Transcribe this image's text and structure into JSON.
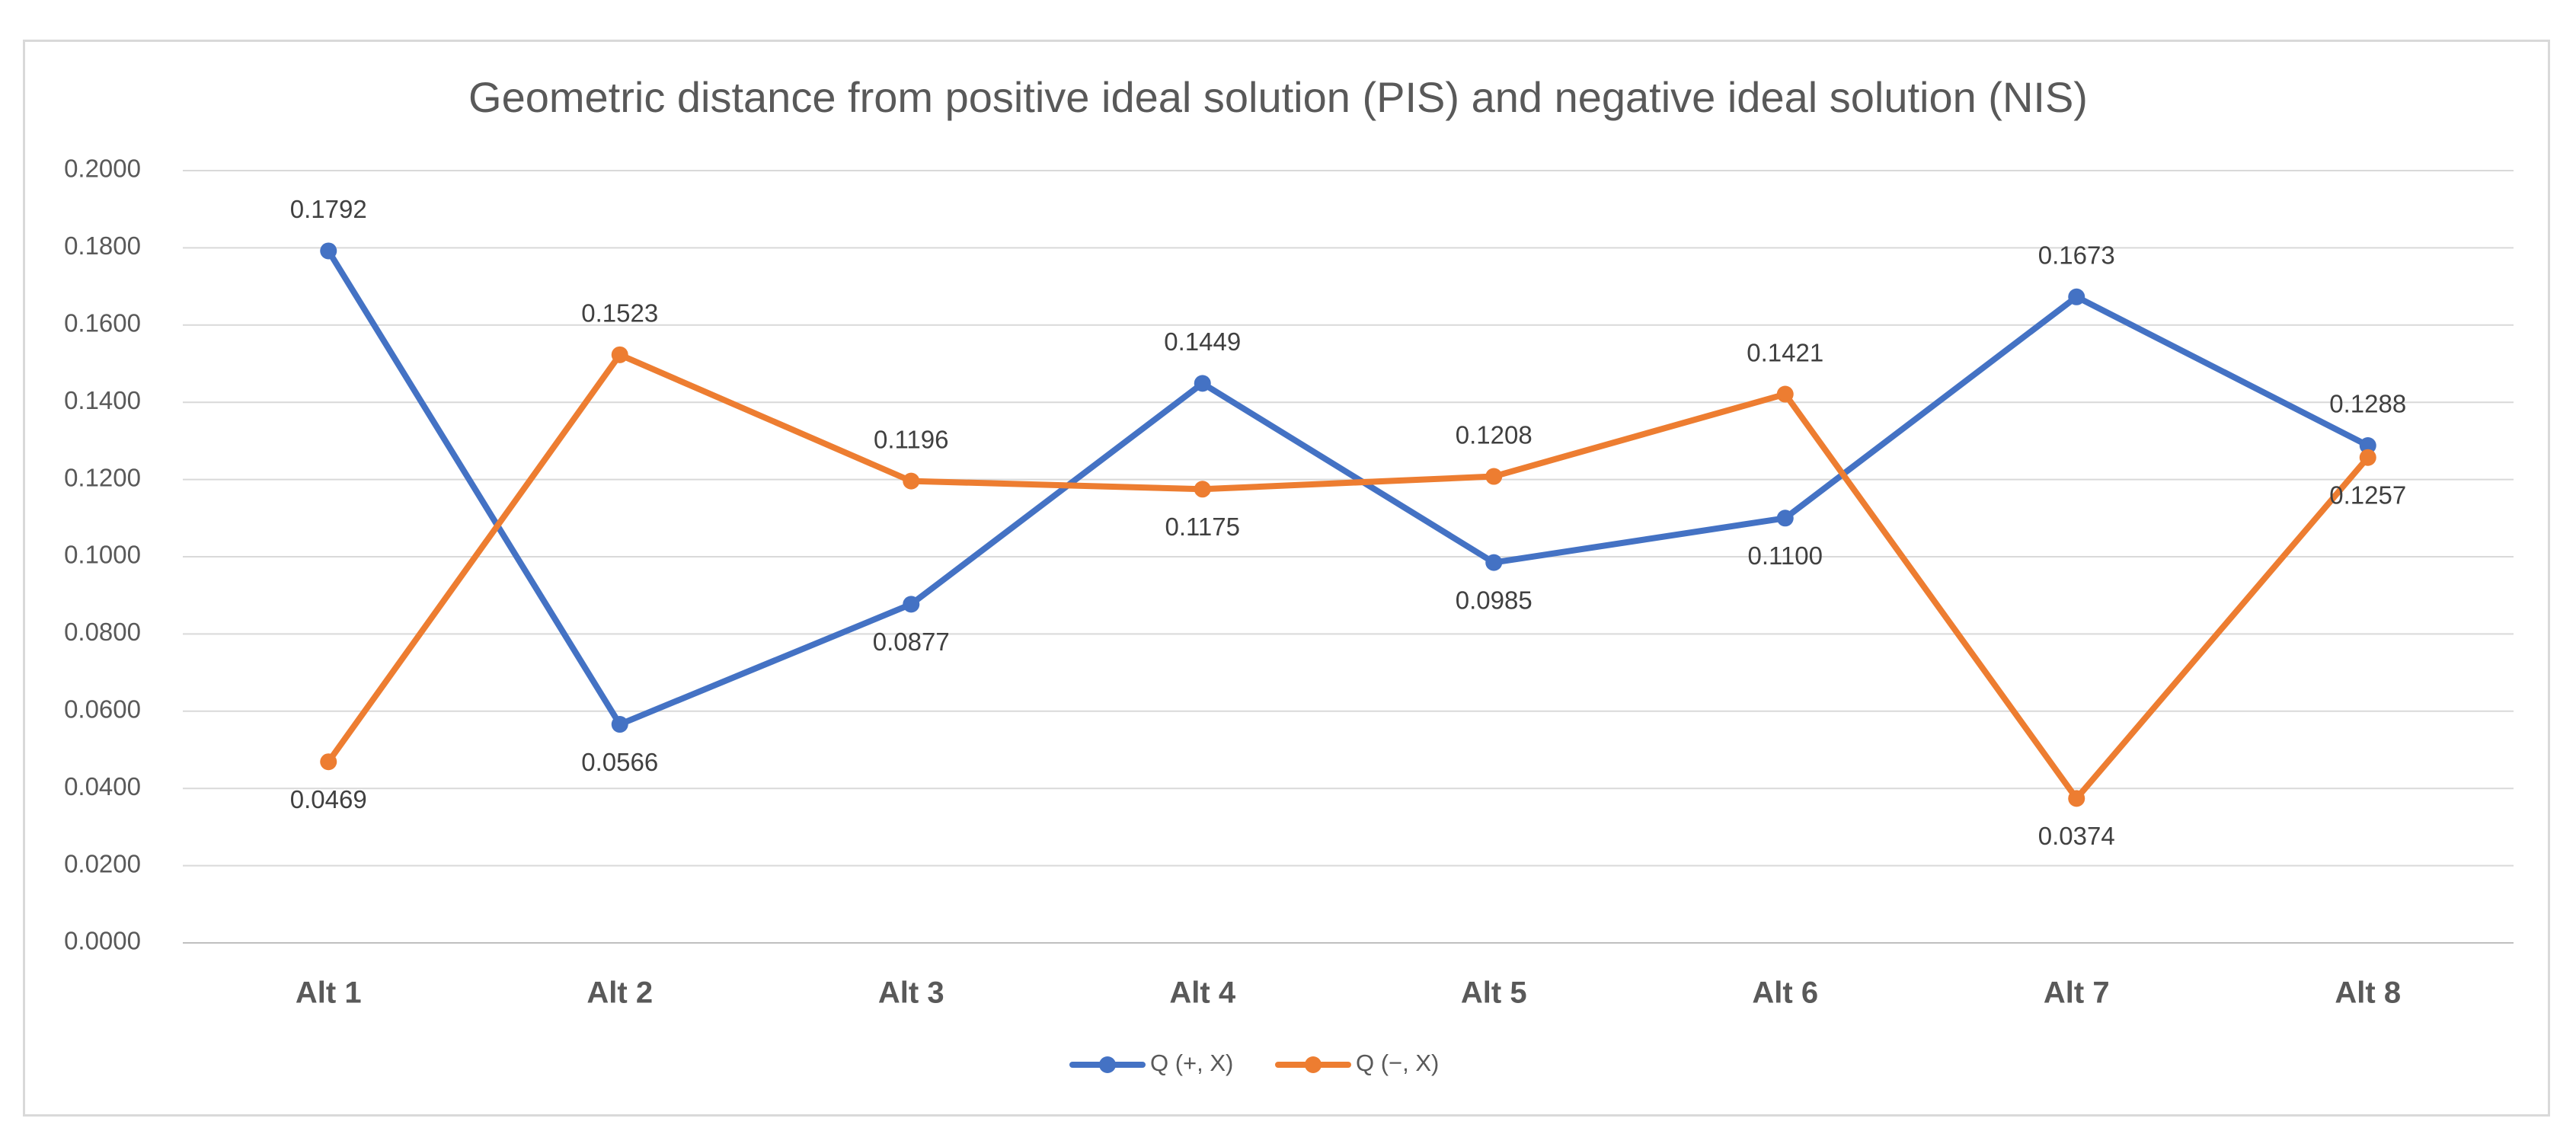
{
  "chart_data": {
    "type": "line",
    "title": "Geometric distance from positive ideal solution (PIS) and negative ideal solution (NIS)",
    "xlabel": "",
    "ylabel": "",
    "categories": [
      "Alt 1",
      "Alt 2",
      "Alt 3",
      "Alt 4",
      "Alt 5",
      "Alt 6",
      "Alt 7",
      "Alt 8"
    ],
    "ylim": [
      0,
      0.2
    ],
    "y_ticks": [
      "0.0000",
      "0.0200",
      "0.0400",
      "0.0600",
      "0.0800",
      "0.1000",
      "0.1200",
      "0.1400",
      "0.1600",
      "0.1800",
      "0.2000"
    ],
    "grid": true,
    "legend_position": "bottom",
    "series": [
      {
        "name": "Q (+, X)",
        "color": "#4472c4",
        "values": [
          0.1792,
          0.0566,
          0.0877,
          0.1449,
          0.0985,
          0.11,
          0.1673,
          0.1288
        ],
        "labels": [
          "0.1792",
          "0.0566",
          "0.0877",
          "0.1449",
          "0.0985",
          "0.1100",
          "0.1673",
          "0.1288"
        ]
      },
      {
        "name": "Q (−, X)",
        "color": "#ed7d31",
        "values": [
          0.0469,
          0.1523,
          0.1196,
          0.1175,
          0.1208,
          0.1421,
          0.0374,
          0.1257
        ],
        "labels": [
          "0.0469",
          "0.1523",
          "0.1196",
          "0.1175",
          "0.1208",
          "0.1421",
          "0.0374",
          "0.1257"
        ]
      }
    ]
  }
}
